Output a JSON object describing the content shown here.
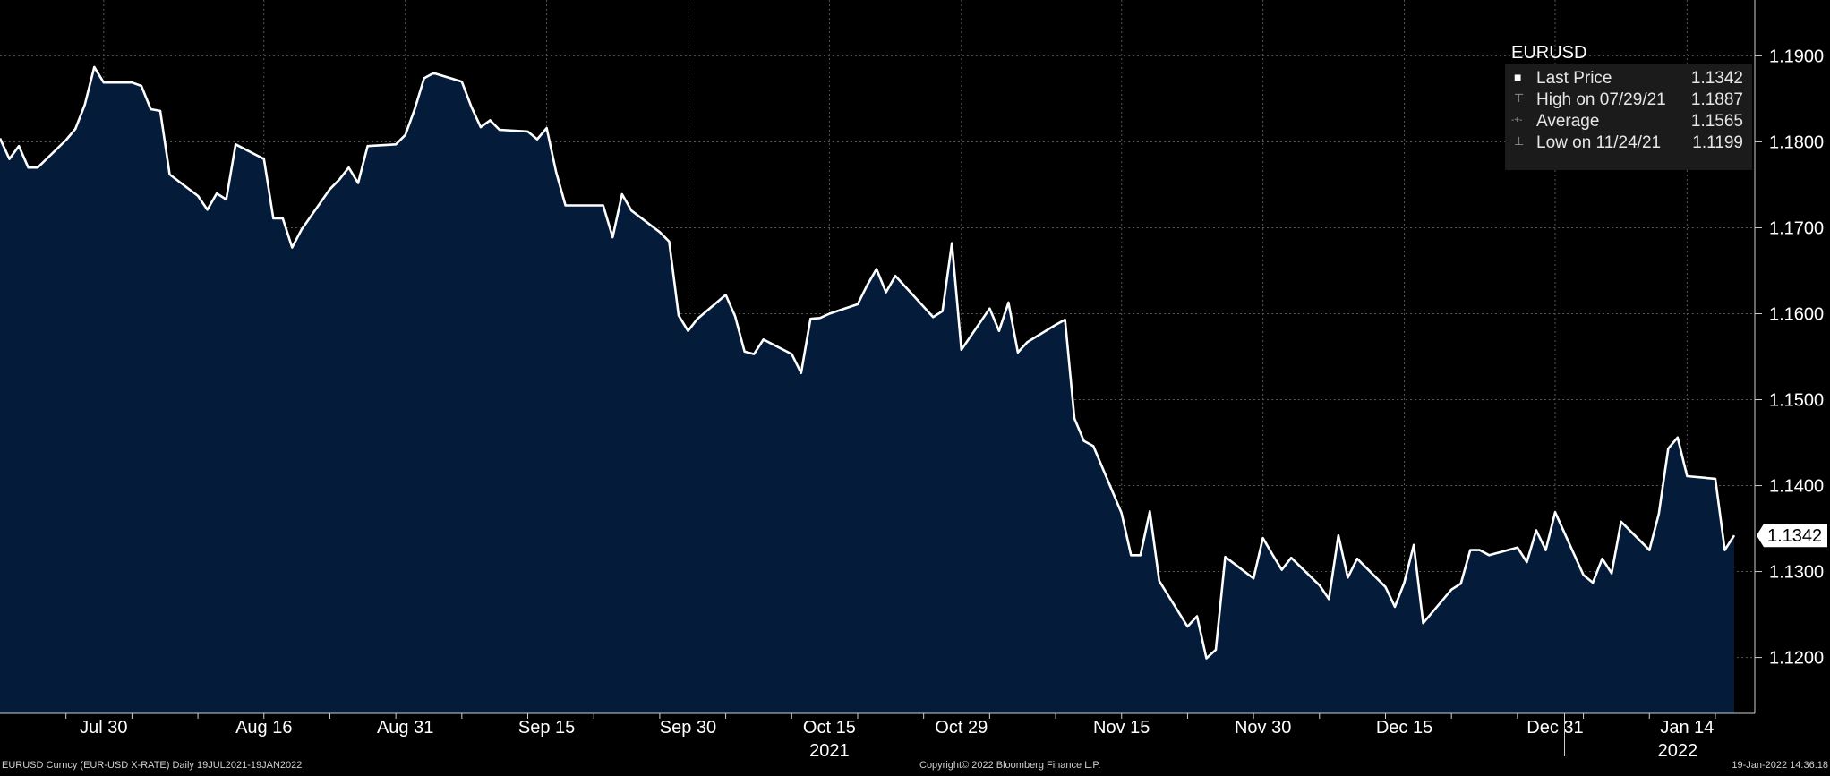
{
  "chart_data": {
    "type": "area",
    "title": "EURUSD",
    "y_axis_side": "right",
    "ylim": [
      1.1135,
      1.1965
    ],
    "xlim": [
      "2021-07-19",
      "2022-01-19"
    ],
    "grid": true,
    "y_ticks": [
      {
        "value": 1.19,
        "label": "1.1900"
      },
      {
        "value": 1.18,
        "label": "1.1800"
      },
      {
        "value": 1.17,
        "label": "1.1700"
      },
      {
        "value": 1.16,
        "label": "1.1600"
      },
      {
        "value": 1.15,
        "label": "1.1500"
      },
      {
        "value": 1.14,
        "label": "1.1400"
      },
      {
        "value": 1.13,
        "label": "1.1300"
      },
      {
        "value": 1.12,
        "label": "1.1200"
      }
    ],
    "x_ticks": [
      {
        "date": "2021-07-30",
        "label": "Jul 30"
      },
      {
        "date": "2021-08-16",
        "label": "Aug 16"
      },
      {
        "date": "2021-08-31",
        "label": "Aug 31"
      },
      {
        "date": "2021-09-15",
        "label": "Sep 15"
      },
      {
        "date": "2021-09-30",
        "label": "Sep 30"
      },
      {
        "date": "2021-10-15",
        "label": "Oct 15"
      },
      {
        "date": "2021-10-29",
        "label": "Oct 29"
      },
      {
        "date": "2021-11-15",
        "label": "Nov 15"
      },
      {
        "date": "2021-11-30",
        "label": "Nov 30"
      },
      {
        "date": "2021-12-15",
        "label": "Dec 15"
      },
      {
        "date": "2021-12-31",
        "label": "Dec 31"
      },
      {
        "date": "2022-01-14",
        "label": "Jan 14"
      }
    ],
    "year_labels": [
      {
        "date": "2021-10-15",
        "label": "2021"
      },
      {
        "date": "2022-01-13",
        "label": "2022"
      }
    ],
    "year_boundary": "2022-01-01",
    "series": [
      {
        "name": "EURUSD",
        "color": "#ffffff",
        "fill": "#041c3a",
        "x": [
          "2021-07-19",
          "2021-07-20",
          "2021-07-21",
          "2021-07-22",
          "2021-07-23",
          "2021-07-26",
          "2021-07-27",
          "2021-07-28",
          "2021-07-29",
          "2021-07-30",
          "2021-08-02",
          "2021-08-03",
          "2021-08-04",
          "2021-08-05",
          "2021-08-06",
          "2021-08-09",
          "2021-08-10",
          "2021-08-11",
          "2021-08-12",
          "2021-08-13",
          "2021-08-16",
          "2021-08-17",
          "2021-08-18",
          "2021-08-19",
          "2021-08-20",
          "2021-08-23",
          "2021-08-24",
          "2021-08-25",
          "2021-08-26",
          "2021-08-27",
          "2021-08-30",
          "2021-08-31",
          "2021-09-01",
          "2021-09-02",
          "2021-09-03",
          "2021-09-06",
          "2021-09-07",
          "2021-09-08",
          "2021-09-09",
          "2021-09-10",
          "2021-09-13",
          "2021-09-14",
          "2021-09-15",
          "2021-09-16",
          "2021-09-17",
          "2021-09-20",
          "2021-09-21",
          "2021-09-22",
          "2021-09-23",
          "2021-09-24",
          "2021-09-27",
          "2021-09-28",
          "2021-09-29",
          "2021-09-30",
          "2021-10-01",
          "2021-10-04",
          "2021-10-05",
          "2021-10-06",
          "2021-10-07",
          "2021-10-08",
          "2021-10-11",
          "2021-10-12",
          "2021-10-13",
          "2021-10-14",
          "2021-10-15",
          "2021-10-18",
          "2021-10-19",
          "2021-10-20",
          "2021-10-21",
          "2021-10-22",
          "2021-10-25",
          "2021-10-26",
          "2021-10-27",
          "2021-10-28",
          "2021-10-29",
          "2021-11-01",
          "2021-11-02",
          "2021-11-03",
          "2021-11-04",
          "2021-11-05",
          "2021-11-08",
          "2021-11-09",
          "2021-11-10",
          "2021-11-11",
          "2021-11-12",
          "2021-11-15",
          "2021-11-16",
          "2021-11-17",
          "2021-11-18",
          "2021-11-19",
          "2021-11-22",
          "2021-11-23",
          "2021-11-24",
          "2021-11-25",
          "2021-11-26",
          "2021-11-29",
          "2021-11-30",
          "2021-12-01",
          "2021-12-02",
          "2021-12-03",
          "2021-12-06",
          "2021-12-07",
          "2021-12-08",
          "2021-12-09",
          "2021-12-10",
          "2021-12-13",
          "2021-12-14",
          "2021-12-15",
          "2021-12-16",
          "2021-12-17",
          "2021-12-20",
          "2021-12-21",
          "2021-12-22",
          "2021-12-23",
          "2021-12-24",
          "2021-12-27",
          "2021-12-28",
          "2021-12-29",
          "2021-12-30",
          "2021-12-31",
          "2022-01-03",
          "2022-01-04",
          "2022-01-05",
          "2022-01-06",
          "2022-01-07",
          "2022-01-10",
          "2022-01-11",
          "2022-01-12",
          "2022-01-13",
          "2022-01-14",
          "2022-01-17",
          "2022-01-18",
          "2022-01-19"
        ],
        "values": [
          1.1804,
          1.178,
          1.1795,
          1.177,
          1.177,
          1.1802,
          1.1815,
          1.1843,
          1.1887,
          1.1869,
          1.1869,
          1.1865,
          1.1838,
          1.1836,
          1.1762,
          1.1737,
          1.1721,
          1.174,
          1.1733,
          1.1797,
          1.178,
          1.1711,
          1.1711,
          1.1677,
          1.1698,
          1.1745,
          1.1756,
          1.177,
          1.1752,
          1.1795,
          1.1797,
          1.1808,
          1.1838,
          1.1874,
          1.188,
          1.187,
          1.1841,
          1.1817,
          1.1825,
          1.1814,
          1.1812,
          1.1803,
          1.1816,
          1.1765,
          1.1726,
          1.1726,
          1.1726,
          1.1689,
          1.1739,
          1.172,
          1.1695,
          1.1684,
          1.1598,
          1.158,
          1.1594,
          1.1622,
          1.1597,
          1.1556,
          1.1553,
          1.157,
          1.1553,
          1.1531,
          1.1594,
          1.1595,
          1.16,
          1.1611,
          1.1633,
          1.1652,
          1.1625,
          1.1644,
          1.1608,
          1.1596,
          1.1603,
          1.1682,
          1.1558,
          1.1606,
          1.158,
          1.1613,
          1.1555,
          1.1567,
          1.1587,
          1.1593,
          1.1478,
          1.1452,
          1.1446,
          1.1368,
          1.1319,
          1.1319,
          1.137,
          1.1289,
          1.1236,
          1.1248,
          1.1199,
          1.1209,
          1.1317,
          1.1292,
          1.1339,
          1.132,
          1.1302,
          1.1316,
          1.1284,
          1.1268,
          1.1342,
          1.1293,
          1.1315,
          1.1282,
          1.1259,
          1.1287,
          1.1331,
          1.124,
          1.1279,
          1.1286,
          1.1325,
          1.1325,
          1.1319,
          1.1328,
          1.1311,
          1.1348,
          1.1325,
          1.1369,
          1.1296,
          1.1287,
          1.1315,
          1.1298,
          1.1358,
          1.1325,
          1.1367,
          1.1443,
          1.1456,
          1.1411,
          1.1408,
          1.1325,
          1.1342
        ]
      }
    ],
    "last_price_tag": "1.1342",
    "legend": {
      "title": "EURUSD",
      "placement": "top-right",
      "rows": [
        {
          "glyph": "■",
          "label": "Last Price",
          "value": "1.1342"
        },
        {
          "glyph": "⊤",
          "label": "High on 07/29/21",
          "value": "1.1887"
        },
        {
          "glyph": "-+-",
          "label": "Average",
          "value": "1.1565"
        },
        {
          "glyph": "⊥",
          "label": "Low on 11/24/21",
          "value": "1.1199"
        }
      ]
    }
  },
  "footer": {
    "left": "EURUSD Curncy (EUR-USD X-RATE)  Daily 19JUL2021-19JAN2022",
    "center": "Copyright© 2022 Bloomberg Finance L.P.",
    "right": "19-Jan-2022 14:36:18"
  }
}
